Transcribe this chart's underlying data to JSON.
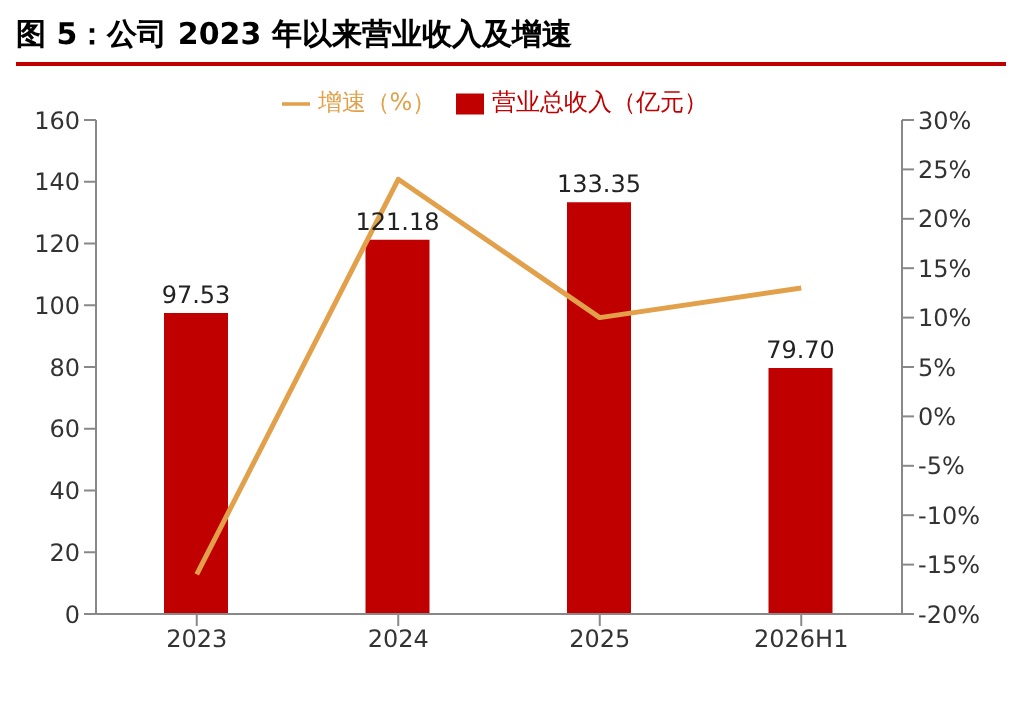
{
  "chart_data": {
    "type": "bar",
    "title": "图 5：公司 2023 年以来营业收入及增速",
    "categories": [
      "2023",
      "2024",
      "2025",
      "2026H1"
    ],
    "series": [
      {
        "name": "营业总收入（亿元）",
        "color": "#c00000",
        "values": [
          97.53,
          121.18,
          133.35,
          79.7
        ],
        "value_labels": [
          "97.53",
          "121.18",
          "133.35",
          "79.70"
        ]
      },
      {
        "name": "增速（%）",
        "type": "line",
        "axis": "y2",
        "color": "#e2a04a",
        "values": [
          -16,
          24,
          10,
          13
        ]
      }
    ],
    "ylim": [
      0,
      160
    ],
    "yticks": [
      0,
      20,
      40,
      60,
      80,
      100,
      120,
      140,
      160
    ],
    "y2lim": [
      -20,
      30
    ],
    "y2ticks": [
      {
        "value": -20,
        "label": "-20%"
      },
      {
        "value": -15,
        "label": "-15%"
      },
      {
        "value": -10,
        "label": "-10%"
      },
      {
        "value": -5,
        "label": "-5%"
      },
      {
        "value": 0,
        "label": "0%"
      },
      {
        "value": 5,
        "label": "5%"
      },
      {
        "value": 10,
        "label": "10%"
      },
      {
        "value": 15,
        "label": "15%"
      },
      {
        "value": 20,
        "label": "20%"
      },
      {
        "value": 25,
        "label": "25%"
      },
      {
        "value": 30,
        "label": "30%"
      }
    ],
    "legend": "top",
    "grid": false,
    "marker": "none"
  }
}
